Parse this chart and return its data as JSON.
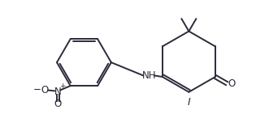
{
  "bg_color": "#ffffff",
  "line_color": "#2a2a3a",
  "line_width": 1.4,
  "font_size": 8.5,
  "fig_width": 3.31,
  "fig_height": 1.62,
  "dpi": 100,
  "label_I": "I",
  "label_O": "O",
  "label_NH": "NH",
  "label_N": "N",
  "label_plus": "+",
  "label_minus": "−"
}
